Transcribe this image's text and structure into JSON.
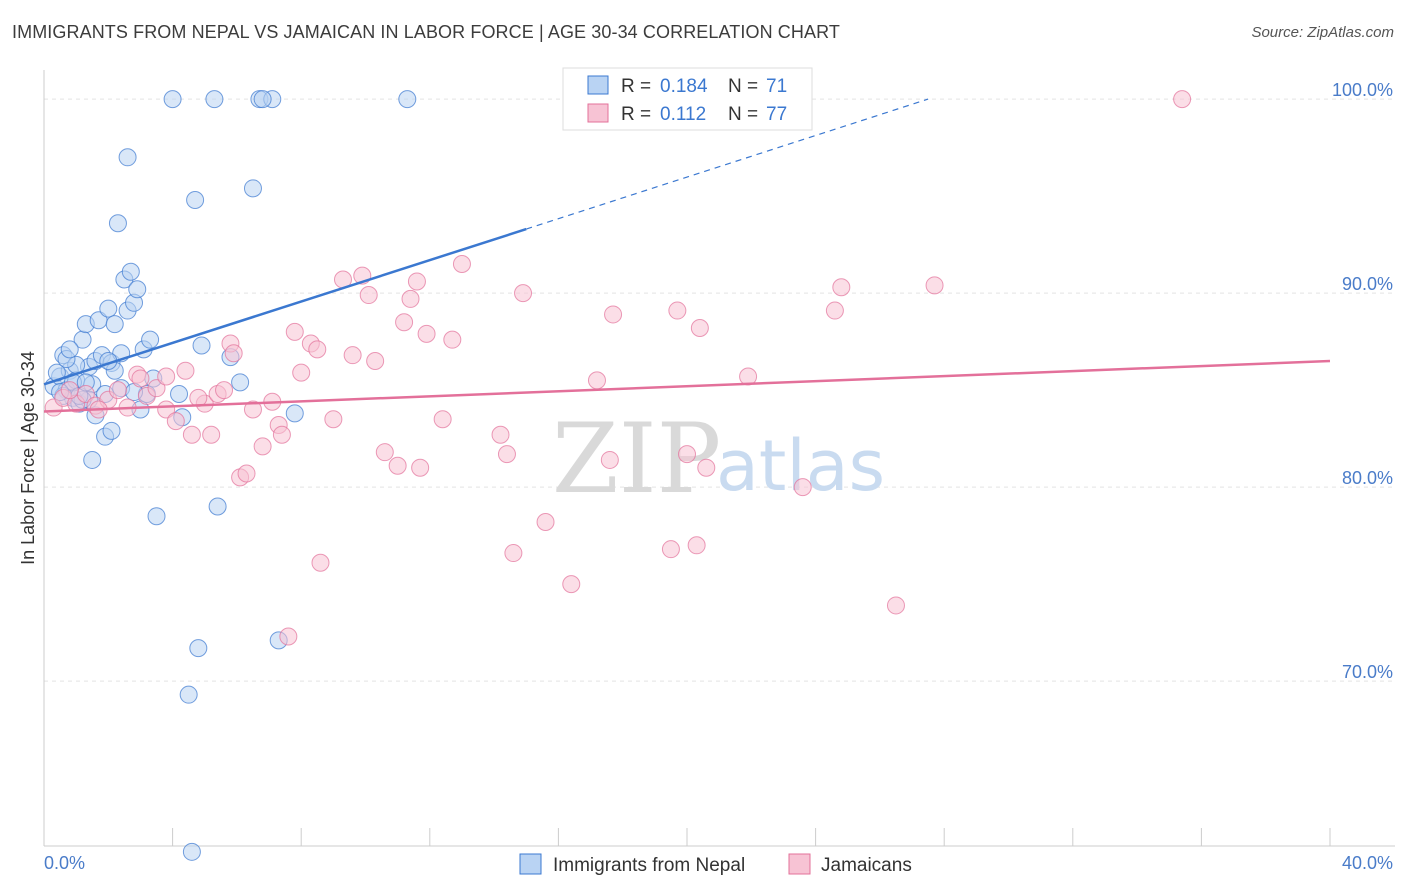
{
  "title": "IMMIGRANTS FROM NEPAL VS JAMAICAN IN LABOR FORCE | AGE 30-34 CORRELATION CHART",
  "source": "Source: ZipAtlas.com",
  "colors": {
    "blue": "#3b78d0",
    "blue_fill": "#b9d3f3",
    "pink": "#e3709a",
    "pink_fill": "#f7c3d4",
    "grid": "#e4e4e4",
    "axis_text": "#4a7cc9"
  },
  "legend": {
    "r_label": "R =",
    "n_label": "N =",
    "series1": {
      "r": "0.184",
      "n": "71"
    },
    "series2": {
      "r": "0.112",
      "n": "77"
    }
  },
  "watermark": {
    "zip": "ZIP",
    "atlas": "atlas"
  },
  "chart_data": {
    "type": "scatter",
    "title": "IMMIGRANTS FROM NEPAL VS JAMAICAN IN LABOR FORCE | AGE 30-34 CORRELATION CHART",
    "xlabel": "",
    "ylabel": "In Labor Force | Age 30-34",
    "xlim": [
      0,
      40
    ],
    "ylim": [
      61.5,
      101.5
    ],
    "x_tick_labels": [
      "0.0%",
      "40.0%"
    ],
    "y_ticks": [
      70,
      80,
      90,
      100
    ],
    "y_tick_labels": [
      "70.0%",
      "80.0%",
      "90.0%",
      "100.0%"
    ],
    "grid": true,
    "legend_position": "top-center",
    "series": [
      {
        "name": "Immigrants from Nepal",
        "color": "#3b78d0",
        "trend": {
          "x": [
            0,
            15
          ],
          "y": [
            85.3,
            93.3
          ],
          "extend_dashed_to": [
            27.5,
            100
          ]
        },
        "points": [
          [
            0.3,
            85.2
          ],
          [
            0.5,
            85.7
          ],
          [
            0.6,
            86.8
          ],
          [
            0.7,
            85.0
          ],
          [
            0.8,
            86.0
          ],
          [
            0.9,
            84.6
          ],
          [
            1.0,
            85.5
          ],
          [
            1.1,
            84.3
          ],
          [
            1.2,
            87.6
          ],
          [
            1.3,
            88.4
          ],
          [
            1.4,
            86.2
          ],
          [
            1.5,
            85.3
          ],
          [
            1.6,
            86.5
          ],
          [
            1.7,
            88.6
          ],
          [
            1.8,
            86.8
          ],
          [
            1.9,
            84.8
          ],
          [
            2.0,
            89.2
          ],
          [
            2.1,
            86.4
          ],
          [
            2.2,
            88.4
          ],
          [
            2.3,
            93.6
          ],
          [
            2.4,
            86.9
          ],
          [
            2.5,
            90.7
          ],
          [
            2.6,
            89.1
          ],
          [
            2.7,
            91.1
          ],
          [
            2.8,
            89.5
          ],
          [
            2.9,
            90.2
          ],
          [
            3.0,
            84.0
          ],
          [
            3.1,
            87.1
          ],
          [
            3.2,
            84.8
          ],
          [
            3.3,
            87.6
          ],
          [
            3.5,
            78.5
          ],
          [
            4.0,
            100
          ],
          [
            4.2,
            84.8
          ],
          [
            4.3,
            83.6
          ],
          [
            4.5,
            69.3
          ],
          [
            4.7,
            94.8
          ],
          [
            4.9,
            87.3
          ],
          [
            5.3,
            100
          ],
          [
            5.4,
            79.0
          ],
          [
            5.8,
            86.7
          ],
          [
            6.1,
            85.4
          ],
          [
            6.5,
            95.4
          ],
          [
            6.7,
            100
          ],
          [
            7.1,
            100
          ],
          [
            7.3,
            72.1
          ],
          [
            7.8,
            83.8
          ],
          [
            11.3,
            100
          ],
          [
            2.6,
            97.0
          ],
          [
            1.5,
            81.4
          ],
          [
            1.9,
            82.6
          ],
          [
            2.1,
            82.9
          ],
          [
            1.4,
            84.5
          ],
          [
            0.9,
            85.4
          ],
          [
            0.6,
            84.7
          ],
          [
            1.2,
            84.5
          ],
          [
            2.4,
            85.1
          ],
          [
            4.8,
            71.7
          ],
          [
            4.6,
            61.2
          ],
          [
            6.8,
            100
          ],
          [
            2.8,
            84.9
          ],
          [
            1.0,
            86.3
          ],
          [
            0.4,
            85.9
          ],
          [
            0.7,
            86.6
          ],
          [
            1.6,
            83.7
          ],
          [
            2.2,
            86.0
          ],
          [
            3.4,
            85.6
          ],
          [
            0.5,
            84.9
          ],
          [
            1.1,
            84.7
          ],
          [
            1.3,
            85.4
          ],
          [
            0.8,
            87.1
          ],
          [
            2.0,
            86.5
          ]
        ]
      },
      {
        "name": "Jamaicans",
        "color": "#e3709a",
        "trend": {
          "x": [
            0,
            40
          ],
          "y": [
            83.9,
            86.5
          ]
        },
        "points": [
          [
            0.3,
            84.1
          ],
          [
            0.6,
            84.6
          ],
          [
            1.0,
            84.3
          ],
          [
            1.3,
            84.8
          ],
          [
            1.6,
            84.2
          ],
          [
            2.0,
            84.5
          ],
          [
            2.3,
            85.0
          ],
          [
            2.6,
            84.1
          ],
          [
            2.9,
            85.8
          ],
          [
            3.2,
            84.7
          ],
          [
            3.5,
            85.1
          ],
          [
            3.8,
            84.0
          ],
          [
            4.1,
            83.4
          ],
          [
            4.4,
            86.0
          ],
          [
            4.6,
            82.7
          ],
          [
            5.0,
            84.3
          ],
          [
            5.2,
            82.7
          ],
          [
            5.4,
            84.8
          ],
          [
            5.6,
            85.0
          ],
          [
            5.8,
            87.4
          ],
          [
            6.1,
            80.5
          ],
          [
            6.3,
            80.7
          ],
          [
            6.5,
            84.0
          ],
          [
            6.8,
            82.1
          ],
          [
            7.1,
            84.4
          ],
          [
            7.3,
            83.2
          ],
          [
            7.6,
            72.3
          ],
          [
            7.8,
            88.0
          ],
          [
            8.0,
            85.9
          ],
          [
            8.3,
            87.4
          ],
          [
            8.5,
            87.1
          ],
          [
            8.6,
            76.1
          ],
          [
            9.0,
            83.5
          ],
          [
            9.3,
            90.7
          ],
          [
            9.6,
            86.8
          ],
          [
            9.9,
            90.9
          ],
          [
            10.1,
            89.9
          ],
          [
            10.3,
            86.5
          ],
          [
            10.6,
            81.8
          ],
          [
            11.0,
            81.1
          ],
          [
            11.2,
            88.5
          ],
          [
            11.4,
            89.7
          ],
          [
            11.6,
            90.6
          ],
          [
            11.7,
            81.0
          ],
          [
            11.9,
            87.9
          ],
          [
            12.4,
            83.5
          ],
          [
            12.7,
            87.6
          ],
          [
            13.0,
            91.5
          ],
          [
            14.2,
            82.7
          ],
          [
            14.4,
            81.7
          ],
          [
            14.6,
            76.6
          ],
          [
            14.9,
            90.0
          ],
          [
            15.6,
            78.2
          ],
          [
            16.4,
            75.0
          ],
          [
            17.2,
            85.5
          ],
          [
            17.6,
            81.4
          ],
          [
            17.7,
            88.9
          ],
          [
            19.5,
            76.8
          ],
          [
            19.7,
            89.1
          ],
          [
            20.0,
            81.7
          ],
          [
            20.3,
            77.0
          ],
          [
            20.4,
            88.2
          ],
          [
            20.6,
            81.0
          ],
          [
            21.9,
            85.7
          ],
          [
            23.6,
            80.0
          ],
          [
            24.6,
            89.1
          ],
          [
            24.8,
            90.3
          ],
          [
            26.5,
            73.9
          ],
          [
            27.7,
            90.4
          ],
          [
            35.4,
            100
          ],
          [
            0.8,
            85.0
          ],
          [
            1.7,
            84.0
          ],
          [
            3.0,
            85.6
          ],
          [
            4.8,
            84.6
          ],
          [
            5.9,
            86.9
          ],
          [
            7.4,
            82.7
          ],
          [
            3.8,
            85.7
          ]
        ]
      }
    ]
  }
}
